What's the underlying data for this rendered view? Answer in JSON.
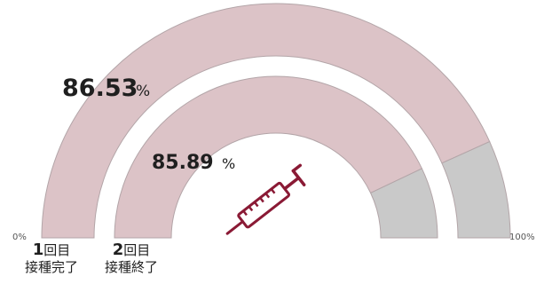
{
  "colors": {
    "filled": "#dcc3c7",
    "remaining": "#c9c9c9",
    "stroke": "#b3a5a8",
    "syringe": "#8a1a35"
  },
  "icons": {
    "center": "syringe-icon"
  },
  "chart_data": {
    "type": "gauge",
    "title": "",
    "axis": {
      "min": 0,
      "max": 100,
      "min_label": "0%",
      "max_label": "100%"
    },
    "series": [
      {
        "name": "1回目 接種完了",
        "label_num": "1",
        "label_unit": "回目",
        "label_sub": "接種完了",
        "value": 86.53,
        "value_label": "86.53",
        "unit": "%"
      },
      {
        "name": "2回目 接種終了",
        "label_num": "2",
        "label_unit": "回目",
        "label_sub": "接種終了",
        "value": 85.89,
        "value_label": "85.89",
        "unit": "%"
      }
    ]
  }
}
